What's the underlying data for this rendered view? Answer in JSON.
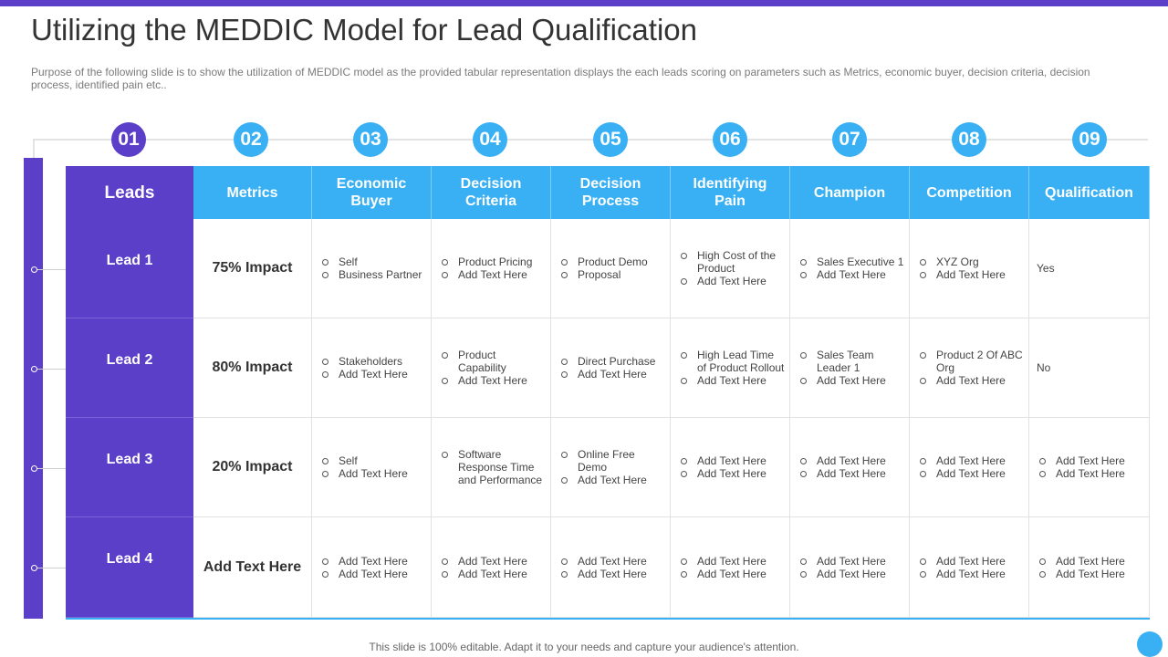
{
  "slide": {
    "title": "Utilizing the MEDDIC Model for Lead Qualification",
    "subtitle": "Purpose of the following slide is to show the utilization of  MEDDIC  model as the provided tabular representation displays the each leads scoring on parameters such as  Metrics, economic buyer, decision criteria, decision process, identified pain etc..",
    "footer": "This slide is 100% editable. Adapt it to your needs and capture your audience's attention."
  },
  "colors": {
    "purple": "#5b3fc9",
    "blue": "#39b0f4"
  },
  "steps": [
    "01",
    "02",
    "03",
    "04",
    "05",
    "06",
    "07",
    "08",
    "09"
  ],
  "table": {
    "headers": [
      "Leads",
      "Metrics",
      "Economic Buyer",
      "Decision Criteria",
      "Decision Process",
      "Identifying Pain",
      "Champion",
      "Competition",
      "Qualification"
    ],
    "rows": [
      {
        "lead": "Lead 1",
        "metrics": "75% Impact",
        "economic_buyer": [
          "Self",
          "Business Partner"
        ],
        "decision_criteria": [
          "Product Pricing",
          "Add Text Here"
        ],
        "decision_process": [
          "Product Demo",
          "Proposal"
        ],
        "identifying_pain": [
          "High Cost of the Product",
          "Add Text Here"
        ],
        "champion": [
          "Sales Executive 1",
          "Add Text Here"
        ],
        "competition": [
          "XYZ  Org",
          "Add Text Here"
        ],
        "qualification": "Yes"
      },
      {
        "lead": "Lead 2",
        "metrics": "80% Impact",
        "economic_buyer": [
          "Stakeholders",
          "Add Text Here"
        ],
        "decision_criteria": [
          "Product Capability",
          "Add Text Here"
        ],
        "decision_process": [
          "Direct Purchase",
          "Add Text Here"
        ],
        "identifying_pain": [
          "High Lead Time of Product Rollout",
          "Add Text Here"
        ],
        "champion": [
          "Sales Team Leader 1",
          "Add Text Here"
        ],
        "competition": [
          "Product 2 Of ABC Org",
          "Add Text Here"
        ],
        "qualification": "No"
      },
      {
        "lead": "Lead 3",
        "metrics": "20% Impact",
        "economic_buyer": [
          "Self",
          "Add Text Here"
        ],
        "decision_criteria": [
          "Software Response Time and Performance"
        ],
        "decision_process": [
          "Online Free Demo",
          "Add Text Here"
        ],
        "identifying_pain": [
          "Add Text Here",
          "Add Text Here"
        ],
        "champion": [
          "Add Text Here",
          "Add Text Here"
        ],
        "competition": [
          "Add Text Here",
          "Add Text Here"
        ],
        "qualification": [
          "Add Text Here",
          "Add Text Here"
        ]
      },
      {
        "lead": "Lead 4",
        "metrics": "Add  Text Here",
        "economic_buyer": [
          "Add Text Here",
          "Add Text Here"
        ],
        "decision_criteria": [
          "Add Text Here",
          "Add Text Here"
        ],
        "decision_process": [
          "Add Text Here",
          "Add Text Here"
        ],
        "identifying_pain": [
          "Add Text Here",
          "Add Text Here"
        ],
        "champion": [
          "Add Text Here",
          "Add Text Here"
        ],
        "competition": [
          "Add Text Here",
          "Add Text Here"
        ],
        "qualification": [
          "Add Text Here",
          "Add Text Here"
        ]
      }
    ]
  }
}
